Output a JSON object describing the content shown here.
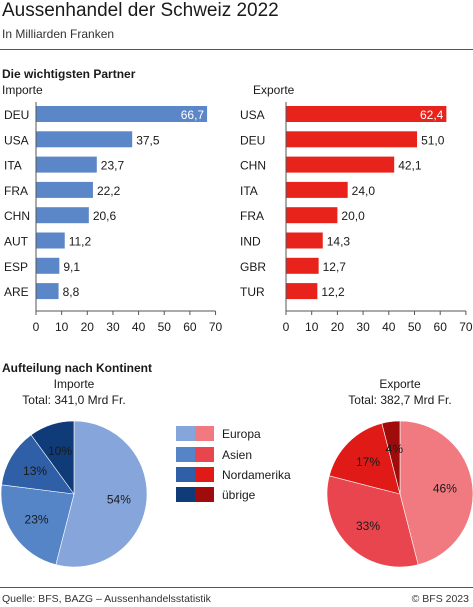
{
  "title": "Aussenhandel der Schweiz 2022",
  "subtitle": "In Milliarden Franken",
  "section_partner": "Die wichtigsten Partner",
  "section_continent": "Aufteilung nach Kontinent",
  "footer": {
    "source": "Quelle: BFS, BAZG – Aussenhandelsstatistik",
    "copyright": "© BFS 2023"
  },
  "colors": {
    "import_bar": "#5b86c8",
    "export_bar": "#e8231c",
    "import_pie": [
      "#86a6db",
      "#5585c6",
      "#2f5fa6",
      "#0f3b78"
    ],
    "export_pie": [
      "#f07a7f",
      "#e8454f",
      "#e01b17",
      "#a00c0c"
    ]
  },
  "chart_data": [
    {
      "type": "bar",
      "orientation": "horizontal",
      "title": "Importe",
      "categories": [
        "DEU",
        "USA",
        "ITA",
        "FRA",
        "CHN",
        "AUT",
        "ESP",
        "ARE"
      ],
      "values": [
        66.7,
        37.5,
        23.7,
        22.2,
        20.6,
        11.2,
        9.1,
        8.8
      ],
      "data_labels": [
        "66,7",
        "37,5",
        "23,7",
        "22,2",
        "20,6",
        "11,2",
        "9,1",
        "8,8"
      ],
      "xlim": [
        0,
        70
      ],
      "ticks": [
        0,
        10,
        20,
        30,
        40,
        50,
        60,
        70
      ],
      "grid": false
    },
    {
      "type": "bar",
      "orientation": "horizontal",
      "title": "Exporte",
      "categories": [
        "USA",
        "DEU",
        "CHN",
        "ITA",
        "FRA",
        "IND",
        "GBR",
        "TUR"
      ],
      "values": [
        62.4,
        51.0,
        42.1,
        24.0,
        20.0,
        14.3,
        12.7,
        12.2
      ],
      "data_labels": [
        "62,4",
        "51,0",
        "42,1",
        "24,0",
        "20,0",
        "14,3",
        "12,7",
        "12,2"
      ],
      "xlim": [
        0,
        70
      ],
      "ticks": [
        0,
        10,
        20,
        30,
        40,
        50,
        60,
        70
      ],
      "grid": false
    },
    {
      "type": "pie",
      "title": "Importe",
      "subtitle": "Total: 341,0 Mrd Fr.",
      "categories": [
        "Europa",
        "Asien",
        "Nordamerika",
        "übrige"
      ],
      "values": [
        54,
        23,
        13,
        10
      ],
      "data_labels": [
        "54%",
        "23%",
        "13%",
        "10%"
      ]
    },
    {
      "type": "pie",
      "title": "Exporte",
      "subtitle": "Total: 382,7 Mrd Fr.",
      "categories": [
        "Europa",
        "Asien",
        "Nordamerika",
        "übrige"
      ],
      "values": [
        46,
        33,
        17,
        4
      ],
      "data_labels": [
        "46%",
        "33%",
        "17%",
        "4%"
      ]
    }
  ],
  "legend": [
    "Europa",
    "Asien",
    "Nordamerika",
    "übrige"
  ]
}
